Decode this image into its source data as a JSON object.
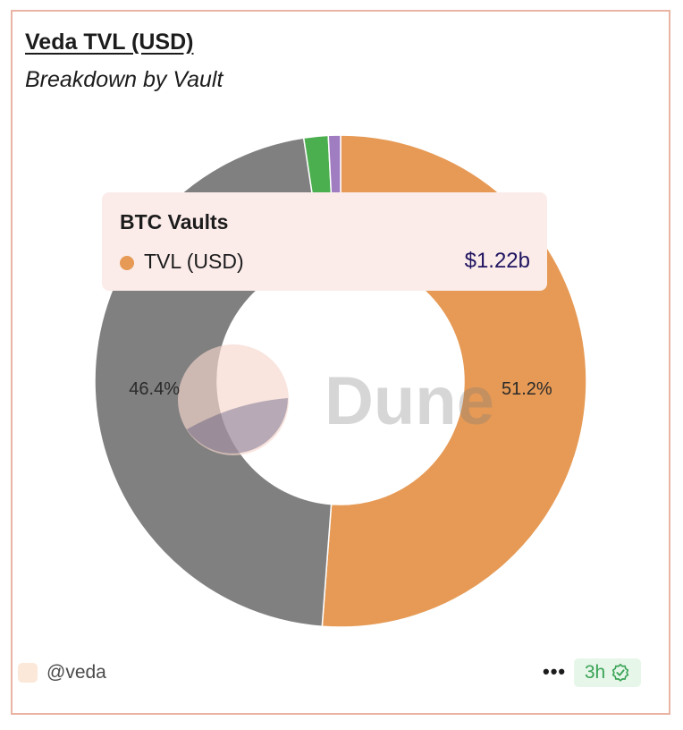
{
  "card": {
    "title": "Veda TVL (USD)",
    "subtitle": "Breakdown by Vault"
  },
  "chart_data": {
    "type": "pie",
    "style": "donut",
    "title": "Veda TVL (USD)",
    "subtitle": "Breakdown by Vault",
    "slices": [
      {
        "name": "BTC Vaults",
        "percent": 51.2,
        "color": "#e69a55",
        "label": "51.2%"
      },
      {
        "name": "",
        "percent": 46.4,
        "color": "#808080",
        "label": "46.4%"
      },
      {
        "name": "",
        "percent": 1.6,
        "color": "#4bae4f",
        "label": ""
      },
      {
        "name": "",
        "percent": 0.8,
        "color": "#a07cc0",
        "label": ""
      }
    ],
    "watermark": "Dune"
  },
  "tooltip": {
    "title": "BTC Vaults",
    "series_label": "TVL (USD)",
    "value": "$1.22b",
    "dot_color": "#e69a55"
  },
  "footer": {
    "author": "@veda",
    "menu_icon": "more-horizontal-icon",
    "age": "3h",
    "status_icon": "check-circle-icon",
    "status_color": "#3aa356"
  }
}
